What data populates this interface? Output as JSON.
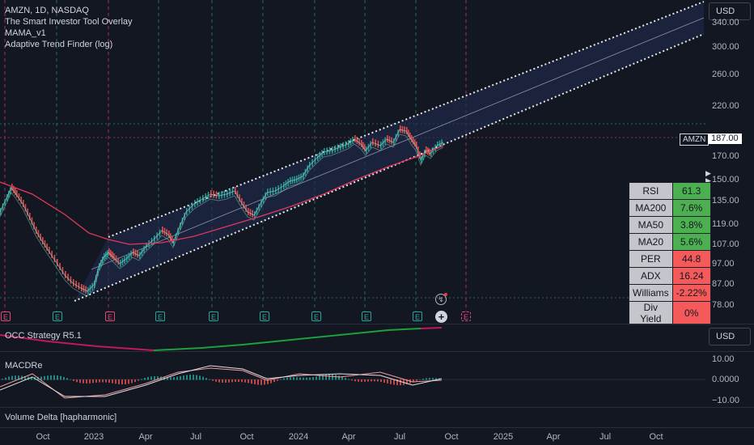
{
  "legend": {
    "symbol": "AMZN, 1D, NASDAQ",
    "indicators": [
      "The Smart Investor Tool Overlay",
      "MAMA_v1",
      "Adaptive Trend Finder (log)"
    ]
  },
  "currency_button": "USD",
  "currency_button_2": "USD",
  "price_axis": [
    "340.00",
    "300.00",
    "260.00",
    "220.00",
    "170.00",
    "150.00",
    "135.00",
    "119.00",
    "107.00",
    "97.00",
    "87.00",
    "78.00"
  ],
  "price_axis_values": [
    340,
    300,
    260,
    220,
    170,
    150,
    135,
    119,
    107,
    97,
    87,
    78
  ],
  "last_price": {
    "symbol": "AMZN",
    "value": "187.00"
  },
  "stats_table": [
    {
      "label": "RSI",
      "value": "61.3",
      "color": "#4caf50"
    },
    {
      "label": "MA200",
      "value": "7.6%",
      "color": "#4caf50"
    },
    {
      "label": "MA50",
      "value": "3.8%",
      "color": "#4caf50"
    },
    {
      "label": "MA20",
      "value": "5.6%",
      "color": "#4caf50"
    },
    {
      "label": "PER",
      "value": "44.8",
      "color": "#f55a5a"
    },
    {
      "label": "ADX",
      "value": "16.24",
      "color": "#f55a5a"
    },
    {
      "label": "Williams",
      "value": "-2.22%",
      "color": "#f55a5a"
    },
    {
      "label": "Div Yield",
      "value": "0%",
      "color": "#f55a5a"
    }
  ],
  "earnings_markers": [
    {
      "label": "E",
      "color": "red"
    },
    {
      "label": "E",
      "color": "green"
    },
    {
      "label": "E",
      "color": "red"
    },
    {
      "label": "E",
      "color": "green"
    },
    {
      "label": "E",
      "color": "green"
    },
    {
      "label": "E",
      "color": "green"
    },
    {
      "label": "E",
      "color": "green"
    },
    {
      "label": "E",
      "color": "green"
    },
    {
      "label": "E",
      "color": "green"
    },
    {
      "label": "E",
      "color": "red-dashed"
    }
  ],
  "panes": {
    "occ": {
      "title": "OCC Strategy R5.1"
    },
    "macd": {
      "title": "MACDRe",
      "axis": [
        "10.00",
        "0.0000",
        "−10.00"
      ]
    },
    "volume": {
      "title": "Volume Delta [hapharmonic]"
    }
  },
  "time_axis": [
    "Oct",
    "2023",
    "Apr",
    "Jul",
    "Oct",
    "2024",
    "Apr",
    "Jul",
    "Oct",
    "2025",
    "Apr",
    "Jul",
    "Oct"
  ],
  "colors": {
    "background": "#131722",
    "channel_fill": "#1f2a4a",
    "up": "#26a69a",
    "down": "#ef5350",
    "ma_red": "#e0385a",
    "occ_green": "#1e9e3c",
    "occ_red": "#c2185b"
  },
  "icons": [
    "alert-icon",
    "add-icon",
    "zoom-arrow-icon"
  ]
}
